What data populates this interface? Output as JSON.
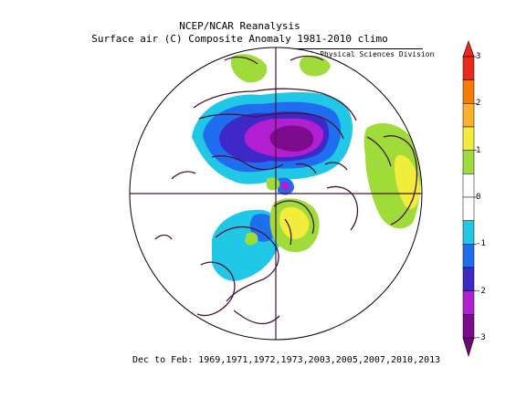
{
  "titles": {
    "line1": "NCEP/NCAR Reanalysis",
    "line2": "Surface air (C) Composite Anomaly 1981-2010 climo"
  },
  "credit": "NOAA/ESRL Physical Sciences Division",
  "date_range": "Dec to Feb: 1969,1971,1972,1973,2003,2005,2007,2010,2013",
  "colorbar": {
    "labels": [
      "3",
      "2",
      "1",
      "0",
      "-1",
      "-2",
      "-3"
    ],
    "bins": [
      {
        "range": "2.5 to 3",
        "color": "#e82a1a"
      },
      {
        "range": "2 to 2.5",
        "color": "#f57c00"
      },
      {
        "range": "1.5 to 2",
        "color": "#f9b12e"
      },
      {
        "range": "1 to 1.5",
        "color": "#f2ec3a"
      },
      {
        "range": "0.5 to 1",
        "color": "#9fdc3a"
      },
      {
        "range": "0 to 0.5",
        "color": "#ffffff"
      },
      {
        "range": "-0.5 to 0",
        "color": "#ffffff"
      },
      {
        "range": "-1 to -0.5",
        "color": "#20c8e6"
      },
      {
        "range": "-1.5 to -1",
        "color": "#1f6ef0"
      },
      {
        "range": "-2 to -1.5",
        "color": "#3d28c8"
      },
      {
        "range": "-2.5 to -2",
        "color": "#b21fd0"
      },
      {
        "range": "-3 to -2.5",
        "color": "#7d0b8d"
      }
    ]
  },
  "colors": {
    "coastline": "#4a1438",
    "frame": "#000000"
  }
}
